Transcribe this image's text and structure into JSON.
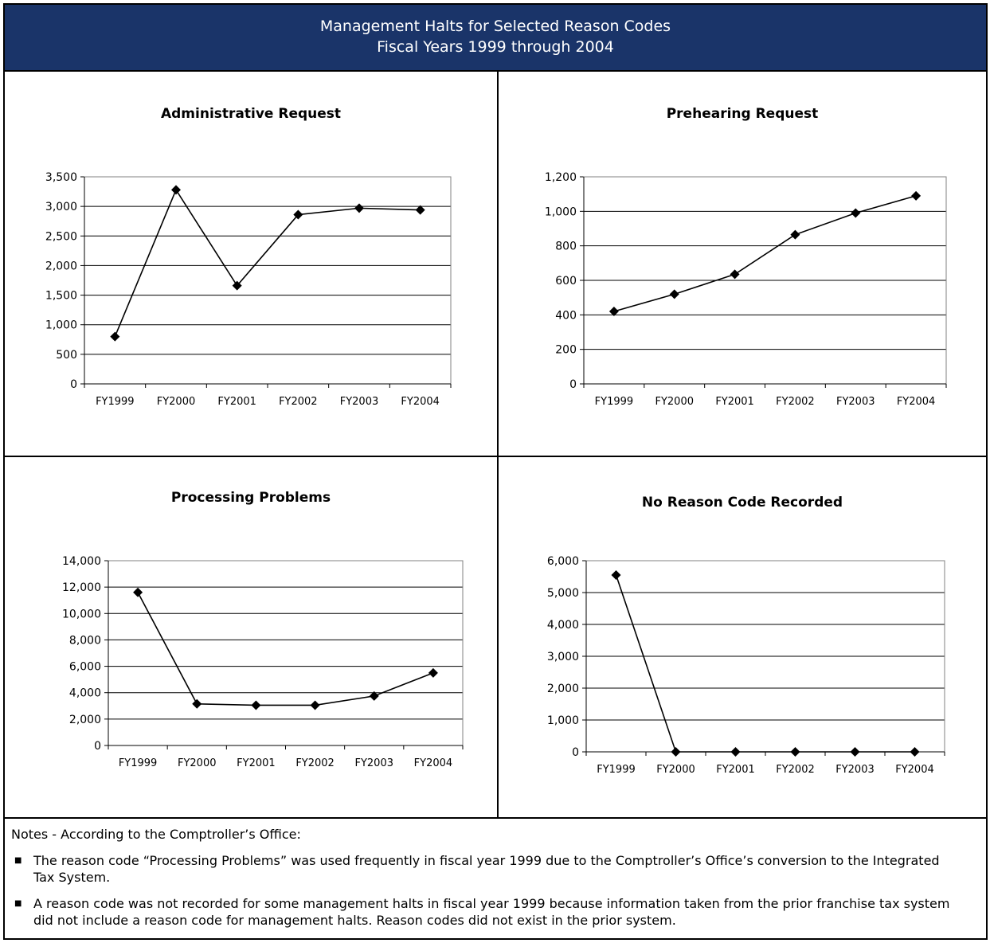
{
  "header": {
    "title_line1": "Management Halts for Selected Reason Codes",
    "title_line2": "Fiscal Years 1999 through 2004"
  },
  "chart_data": [
    {
      "type": "line",
      "title": "Administrative Request",
      "categories": [
        "FY1999",
        "FY2000",
        "FY2001",
        "FY2002",
        "FY2003",
        "FY2004"
      ],
      "values": [
        800,
        3280,
        1660,
        2860,
        2970,
        2940
      ],
      "yticks": [
        "0",
        "500",
        "1,000",
        "1,500",
        "2,000",
        "2,500",
        "3,000",
        "3,500"
      ],
      "ylim": [
        0,
        3500
      ],
      "grid": true,
      "marker": "diamond",
      "color": "#000000"
    },
    {
      "type": "line",
      "title": "Prehearing Request",
      "categories": [
        "FY1999",
        "FY2000",
        "FY2001",
        "FY2002",
        "FY2003",
        "FY2004"
      ],
      "values": [
        420,
        520,
        635,
        865,
        990,
        1090
      ],
      "yticks": [
        "0",
        "200",
        "400",
        "600",
        "800",
        "1,000",
        "1,200"
      ],
      "ylim": [
        0,
        1200
      ],
      "grid": true,
      "marker": "diamond",
      "color": "#000000"
    },
    {
      "type": "line",
      "title": "Processing Problems",
      "categories": [
        "FY1999",
        "FY2000",
        "FY2001",
        "FY2002",
        "FY2003",
        "FY2004"
      ],
      "values": [
        11600,
        3150,
        3050,
        3050,
        3750,
        5500
      ],
      "yticks": [
        "0",
        "2,000",
        "4,000",
        "6,000",
        "8,000",
        "10,000",
        "12,000",
        "14,000"
      ],
      "ylim": [
        0,
        14000
      ],
      "grid": true,
      "marker": "diamond",
      "color": "#000000"
    },
    {
      "type": "line",
      "title": "No Reason Code Recorded",
      "categories": [
        "FY1999",
        "FY2000",
        "FY2001",
        "FY2002",
        "FY2003",
        "FY2004"
      ],
      "values": [
        5550,
        0,
        0,
        0,
        0,
        0
      ],
      "yticks": [
        "0",
        "1,000",
        "2,000",
        "3,000",
        "4,000",
        "5,000",
        "6,000"
      ],
      "ylim": [
        0,
        6000
      ],
      "grid": true,
      "marker": "diamond",
      "color": "#000000"
    }
  ],
  "notes": {
    "heading": "Notes - According to the Comptroller’s Office:",
    "bullet_glyph": "■",
    "items": [
      "The reason code “Processing Problems” was used frequently in fiscal year 1999 due to the Comptroller’s Office’s conversion to the Integrated Tax System.",
      "A reason code was not recorded for some management halts in fiscal year 1999 because information taken from the prior franchise tax system did not include a reason code for management halts.  Reason codes did not exist in the prior system."
    ]
  }
}
